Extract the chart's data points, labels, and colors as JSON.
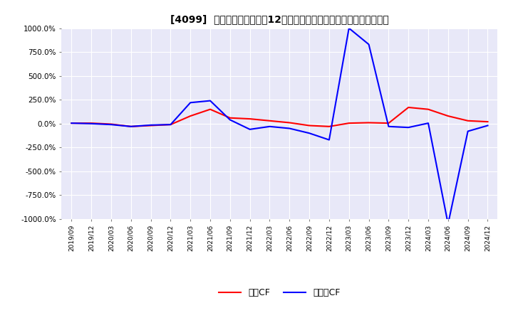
{
  "title": "[4099]  キャッシュフローの12か月移動合計の対前年同期増減率の推移",
  "ylim": [
    -1000,
    1000
  ],
  "yticks": [
    -1000,
    -750,
    -500,
    -250,
    0,
    250,
    500,
    750,
    1000
  ],
  "ytick_labels": [
    "-1000.0%",
    "-750.0%",
    "-500.0%",
    "-250.0%",
    "0.0%",
    "250.0%",
    "500.0%",
    "750.0%",
    "1000.0%"
  ],
  "legend_labels": [
    "営業CF",
    "フリーCF"
  ],
  "legend_colors": [
    "red",
    "blue"
  ],
  "bg_color": "#e8e8f8",
  "x_labels": [
    "2019/09",
    "2019/12",
    "2020/03",
    "2020/06",
    "2020/09",
    "2020/12",
    "2021/03",
    "2021/06",
    "2021/09",
    "2021/12",
    "2022/03",
    "2022/06",
    "2022/09",
    "2022/12",
    "2023/03",
    "2023/06",
    "2023/09",
    "2023/12",
    "2024/03",
    "2024/06",
    "2024/09",
    "2024/12"
  ],
  "operating_cf": [
    5,
    5,
    -5,
    -30,
    -20,
    -10,
    80,
    150,
    60,
    50,
    30,
    10,
    -20,
    -30,
    5,
    10,
    5,
    170,
    150,
    80,
    30,
    20
  ],
  "free_cf": [
    5,
    0,
    -10,
    -30,
    -15,
    -10,
    220,
    240,
    40,
    -60,
    -30,
    -50,
    -100,
    -170,
    1000,
    830,
    -30,
    -40,
    5,
    -1050,
    -80,
    -20
  ]
}
